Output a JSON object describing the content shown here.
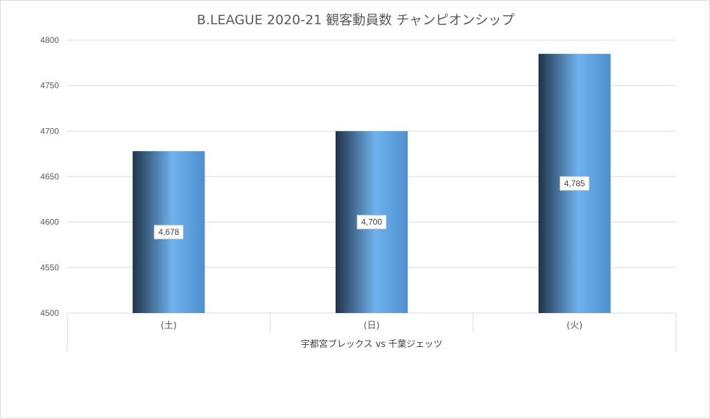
{
  "chart_data": {
    "type": "bar",
    "title": "B.LEAGUE 2020-21 観客動員数 チャンピオンシップ",
    "categories": [
      "(土)",
      "(日)",
      "(火)"
    ],
    "group_label": "宇都宮ブレックス vs 千葉ジェッツ",
    "values": [
      4678,
      4700,
      4785
    ],
    "data_labels": [
      "4,678",
      "4,700",
      "4,785"
    ],
    "ylim": [
      4500,
      4800
    ],
    "yticks": [
      4500,
      4550,
      4600,
      4650,
      4700,
      4750,
      4800
    ],
    "grid": true,
    "legend": "none",
    "xlabel": "",
    "ylabel": ""
  },
  "colors": {
    "bar_dark": "#1f3347",
    "bar_light": "#6fb2ee",
    "gridline": "#d9d9d9",
    "text": "#595959"
  }
}
